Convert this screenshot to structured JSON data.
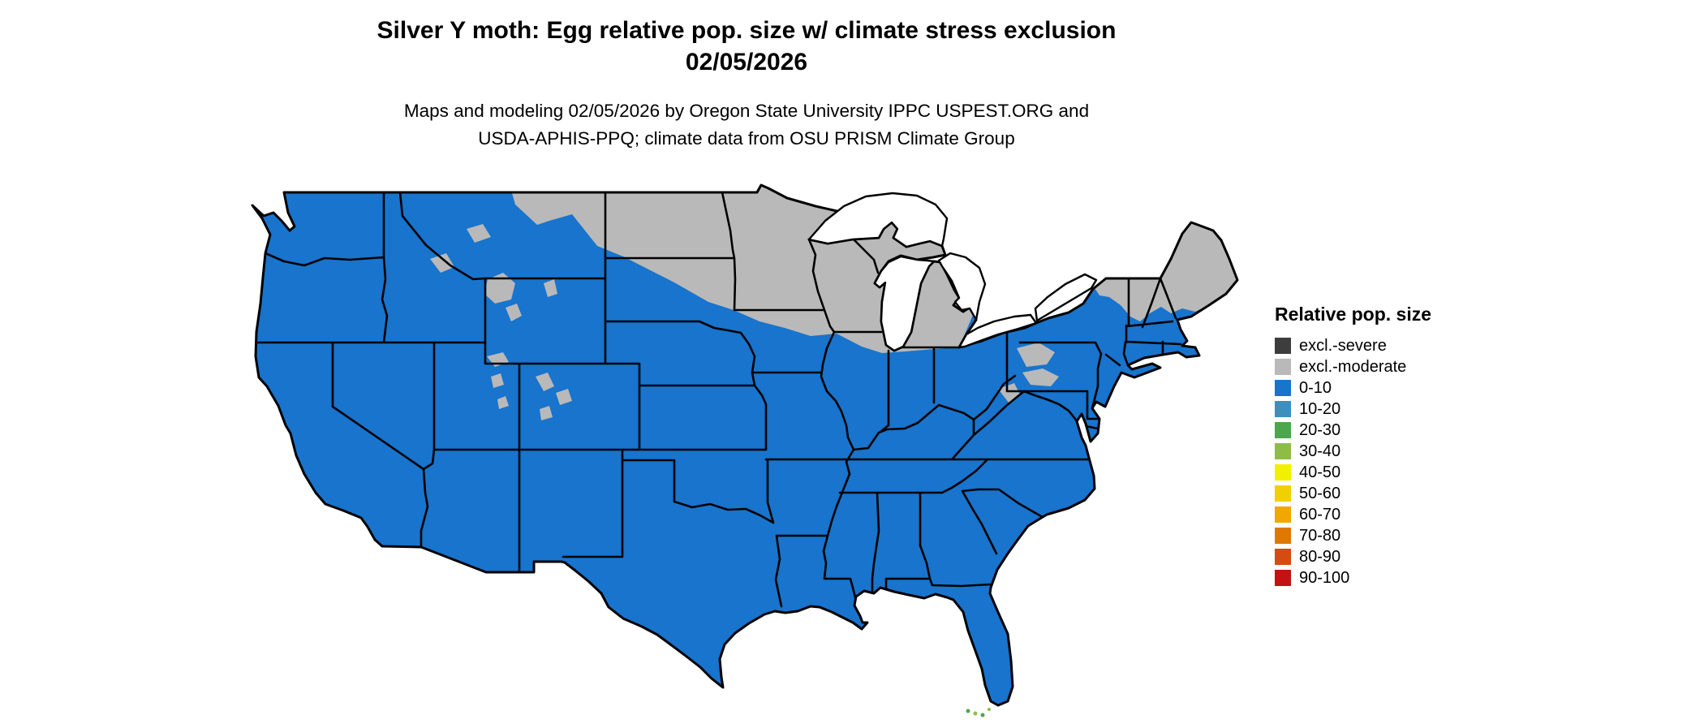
{
  "header": {
    "title_line1": "Silver Y moth: Egg relative pop. size w/ climate stress exclusion",
    "title_line2": "02/05/2026",
    "subtitle_line1": "Maps and modeling 02/05/2026 by Oregon State University IPPC USPEST.ORG and",
    "subtitle_line2": "USDA-APHIS-PPQ; climate data from OSU PRISM Climate Group"
  },
  "legend": {
    "title": "Relative pop. size",
    "items": [
      {
        "label": "excl.-severe",
        "color": "#3d3d3d"
      },
      {
        "label": "excl.-moderate",
        "color": "#b9b9b9"
      },
      {
        "label": "0-10",
        "color": "#1874CD"
      },
      {
        "label": "10-20",
        "color": "#3E8FBE"
      },
      {
        "label": "20-30",
        "color": "#4CA64C"
      },
      {
        "label": "30-40",
        "color": "#8FBC45"
      },
      {
        "label": "40-50",
        "color": "#F0F000"
      },
      {
        "label": "50-60",
        "color": "#F0D000"
      },
      {
        "label": "60-70",
        "color": "#F0A800"
      },
      {
        "label": "70-80",
        "color": "#E07800"
      },
      {
        "label": "80-90",
        "color": "#D64B12"
      },
      {
        "label": "90-100",
        "color": "#C41111"
      }
    ]
  },
  "map": {
    "region": "Continental United States",
    "dominant_class": "0-10",
    "excluded_class": "excl.-moderate",
    "excluded_areas": "Northern Montana, North Dakota, northern South Dakota, Minnesota, Wisconsin, Michigan, northern Iowa/Illinois fringe, Adirondacks, Vermont, New Hampshire, Maine, Appalachian plateau patches, high Rockies patches",
    "accent_specks": "small 20-30 and 30-40 colored pixels near the Florida Keys",
    "border_color": "#000000",
    "water_color": "#ffffff"
  }
}
